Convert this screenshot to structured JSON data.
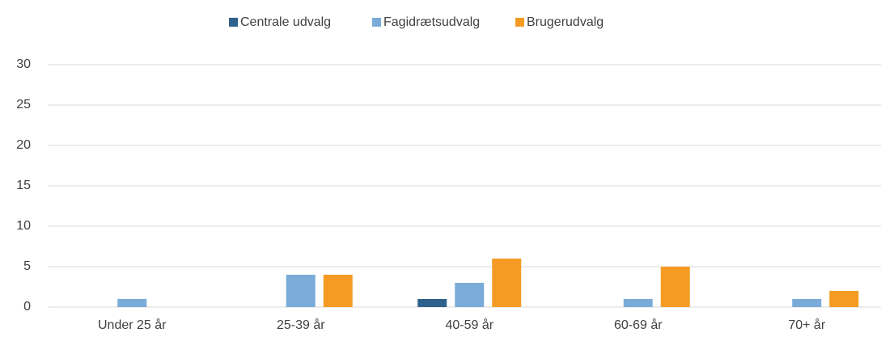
{
  "chart_data": {
    "type": "bar",
    "categories": [
      "Under 25 år",
      "25-39 år",
      "40-59 år",
      "60-69 år",
      "70+ år"
    ],
    "series": [
      {
        "name": "Centrale udvalg",
        "color": "#2e628c",
        "values": [
          0,
          0,
          1,
          0,
          0
        ]
      },
      {
        "name": "Fagidrætsudvalg",
        "color": "#7aabd9",
        "values": [
          1,
          4,
          3,
          1,
          1
        ]
      },
      {
        "name": "Brugerudvalg",
        "color": "#f59b23",
        "values": [
          0,
          4,
          6,
          5,
          2
        ]
      }
    ],
    "ylim": [
      0,
      30
    ],
    "yticks": [
      0,
      5,
      10,
      15,
      20,
      25,
      30
    ],
    "grid": true,
    "legend": "top"
  }
}
